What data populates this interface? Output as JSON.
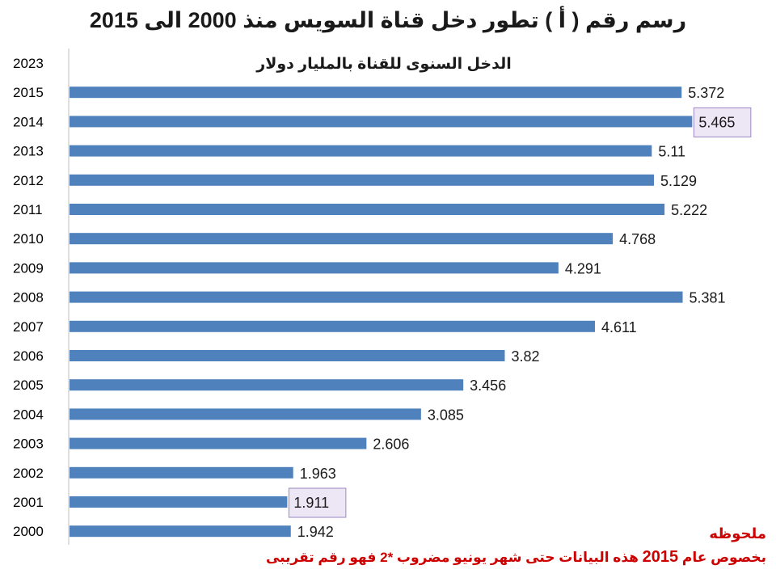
{
  "page": {
    "title": "رسم رقم ( أ ) تطور دخل قناة السويس منذ 2000 الى 2015"
  },
  "chart_data": {
    "type": "bar",
    "orientation": "horizontal",
    "title": "الدخل السنوى للقناة بالمليار دولار",
    "categories": [
      "2023",
      "2015",
      "2014",
      "2013",
      "2012",
      "2011",
      "2010",
      "2009",
      "2008",
      "2007",
      "2006",
      "2005",
      "2004",
      "2003",
      "2002",
      "2001",
      "2000"
    ],
    "values": [
      null,
      5.372,
      5.465,
      5.11,
      5.129,
      5.222,
      4.768,
      4.291,
      5.381,
      4.611,
      3.82,
      3.456,
      3.085,
      2.606,
      1.963,
      1.911,
      1.942
    ],
    "labels": [
      "",
      "5.372",
      "5.465",
      "5.11",
      "5.129",
      "5.222",
      "4.768",
      "4.291",
      "5.381",
      "4.611",
      "3.82",
      "3.456",
      "3.085",
      "2.606",
      "1.963",
      "1.911",
      "1.942"
    ],
    "highlighted_labels": [
      "2014",
      "2001"
    ],
    "bar_color": "#4f81bd",
    "highlight_fill": "#ece6f5",
    "highlight_border": "#9b87c2",
    "xlim": [
      0,
      5.5
    ],
    "grid": false,
    "legend": "none"
  },
  "note": {
    "label": "ملحوظه",
    "text_before": "بخصوص عام ",
    "year": "2015",
    "text_after": " هذه البيانات حتى شهر يونيو مضروب *2 فهو رقم تقريبى",
    "color": "#cc0000"
  }
}
